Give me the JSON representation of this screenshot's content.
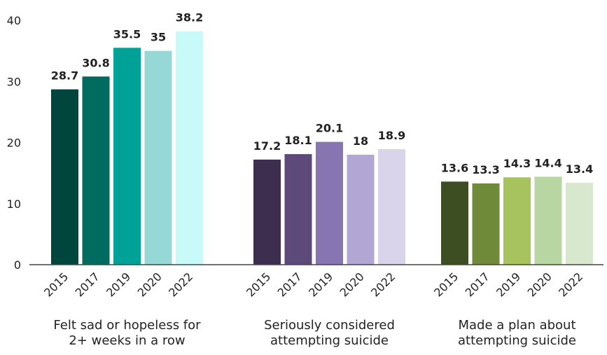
{
  "chart_data": {
    "type": "bar",
    "ylim": [
      0,
      40
    ],
    "yticks": [
      0,
      10,
      20,
      30,
      40
    ],
    "grid": false,
    "groups": [
      {
        "label_lines": [
          "Felt sad or hopeless for",
          "2+ weeks in a row"
        ],
        "categories": [
          "2015",
          "2017",
          "2019",
          "2020",
          "2022"
        ],
        "values": [
          28.7,
          30.8,
          35.5,
          35,
          38.2
        ],
        "value_labels": [
          "28.7",
          "30.8",
          "35.5",
          "35",
          "38.2"
        ],
        "colors": [
          "#00463e",
          "#006b5f",
          "#00a196",
          "#96d8d5",
          "#c9fafa"
        ]
      },
      {
        "label_lines": [
          "Seriously considered",
          "attempting suicide"
        ],
        "categories": [
          "2015",
          "2017",
          "2019",
          "2020",
          "2022"
        ],
        "values": [
          17.2,
          18.1,
          20.1,
          18,
          18.9
        ],
        "value_labels": [
          "17.2",
          "18.1",
          "20.1",
          "18",
          "18.9"
        ],
        "colors": [
          "#3d2e4f",
          "#5e4a7a",
          "#8675b0",
          "#b2a6d4",
          "#d9d4ea"
        ]
      },
      {
        "label_lines": [
          "Made a plan about",
          "attempting suicide"
        ],
        "categories": [
          "2015",
          "2017",
          "2019",
          "2020",
          "2022"
        ],
        "values": [
          13.6,
          13.3,
          14.3,
          14.4,
          13.4
        ],
        "value_labels": [
          "13.6",
          "13.3",
          "14.3",
          "14.4",
          "13.4"
        ],
        "colors": [
          "#3c4e22",
          "#6f8b3a",
          "#a7c35e",
          "#b8d6a2",
          "#d8e8cf"
        ]
      }
    ],
    "axis_color": "#444444"
  }
}
